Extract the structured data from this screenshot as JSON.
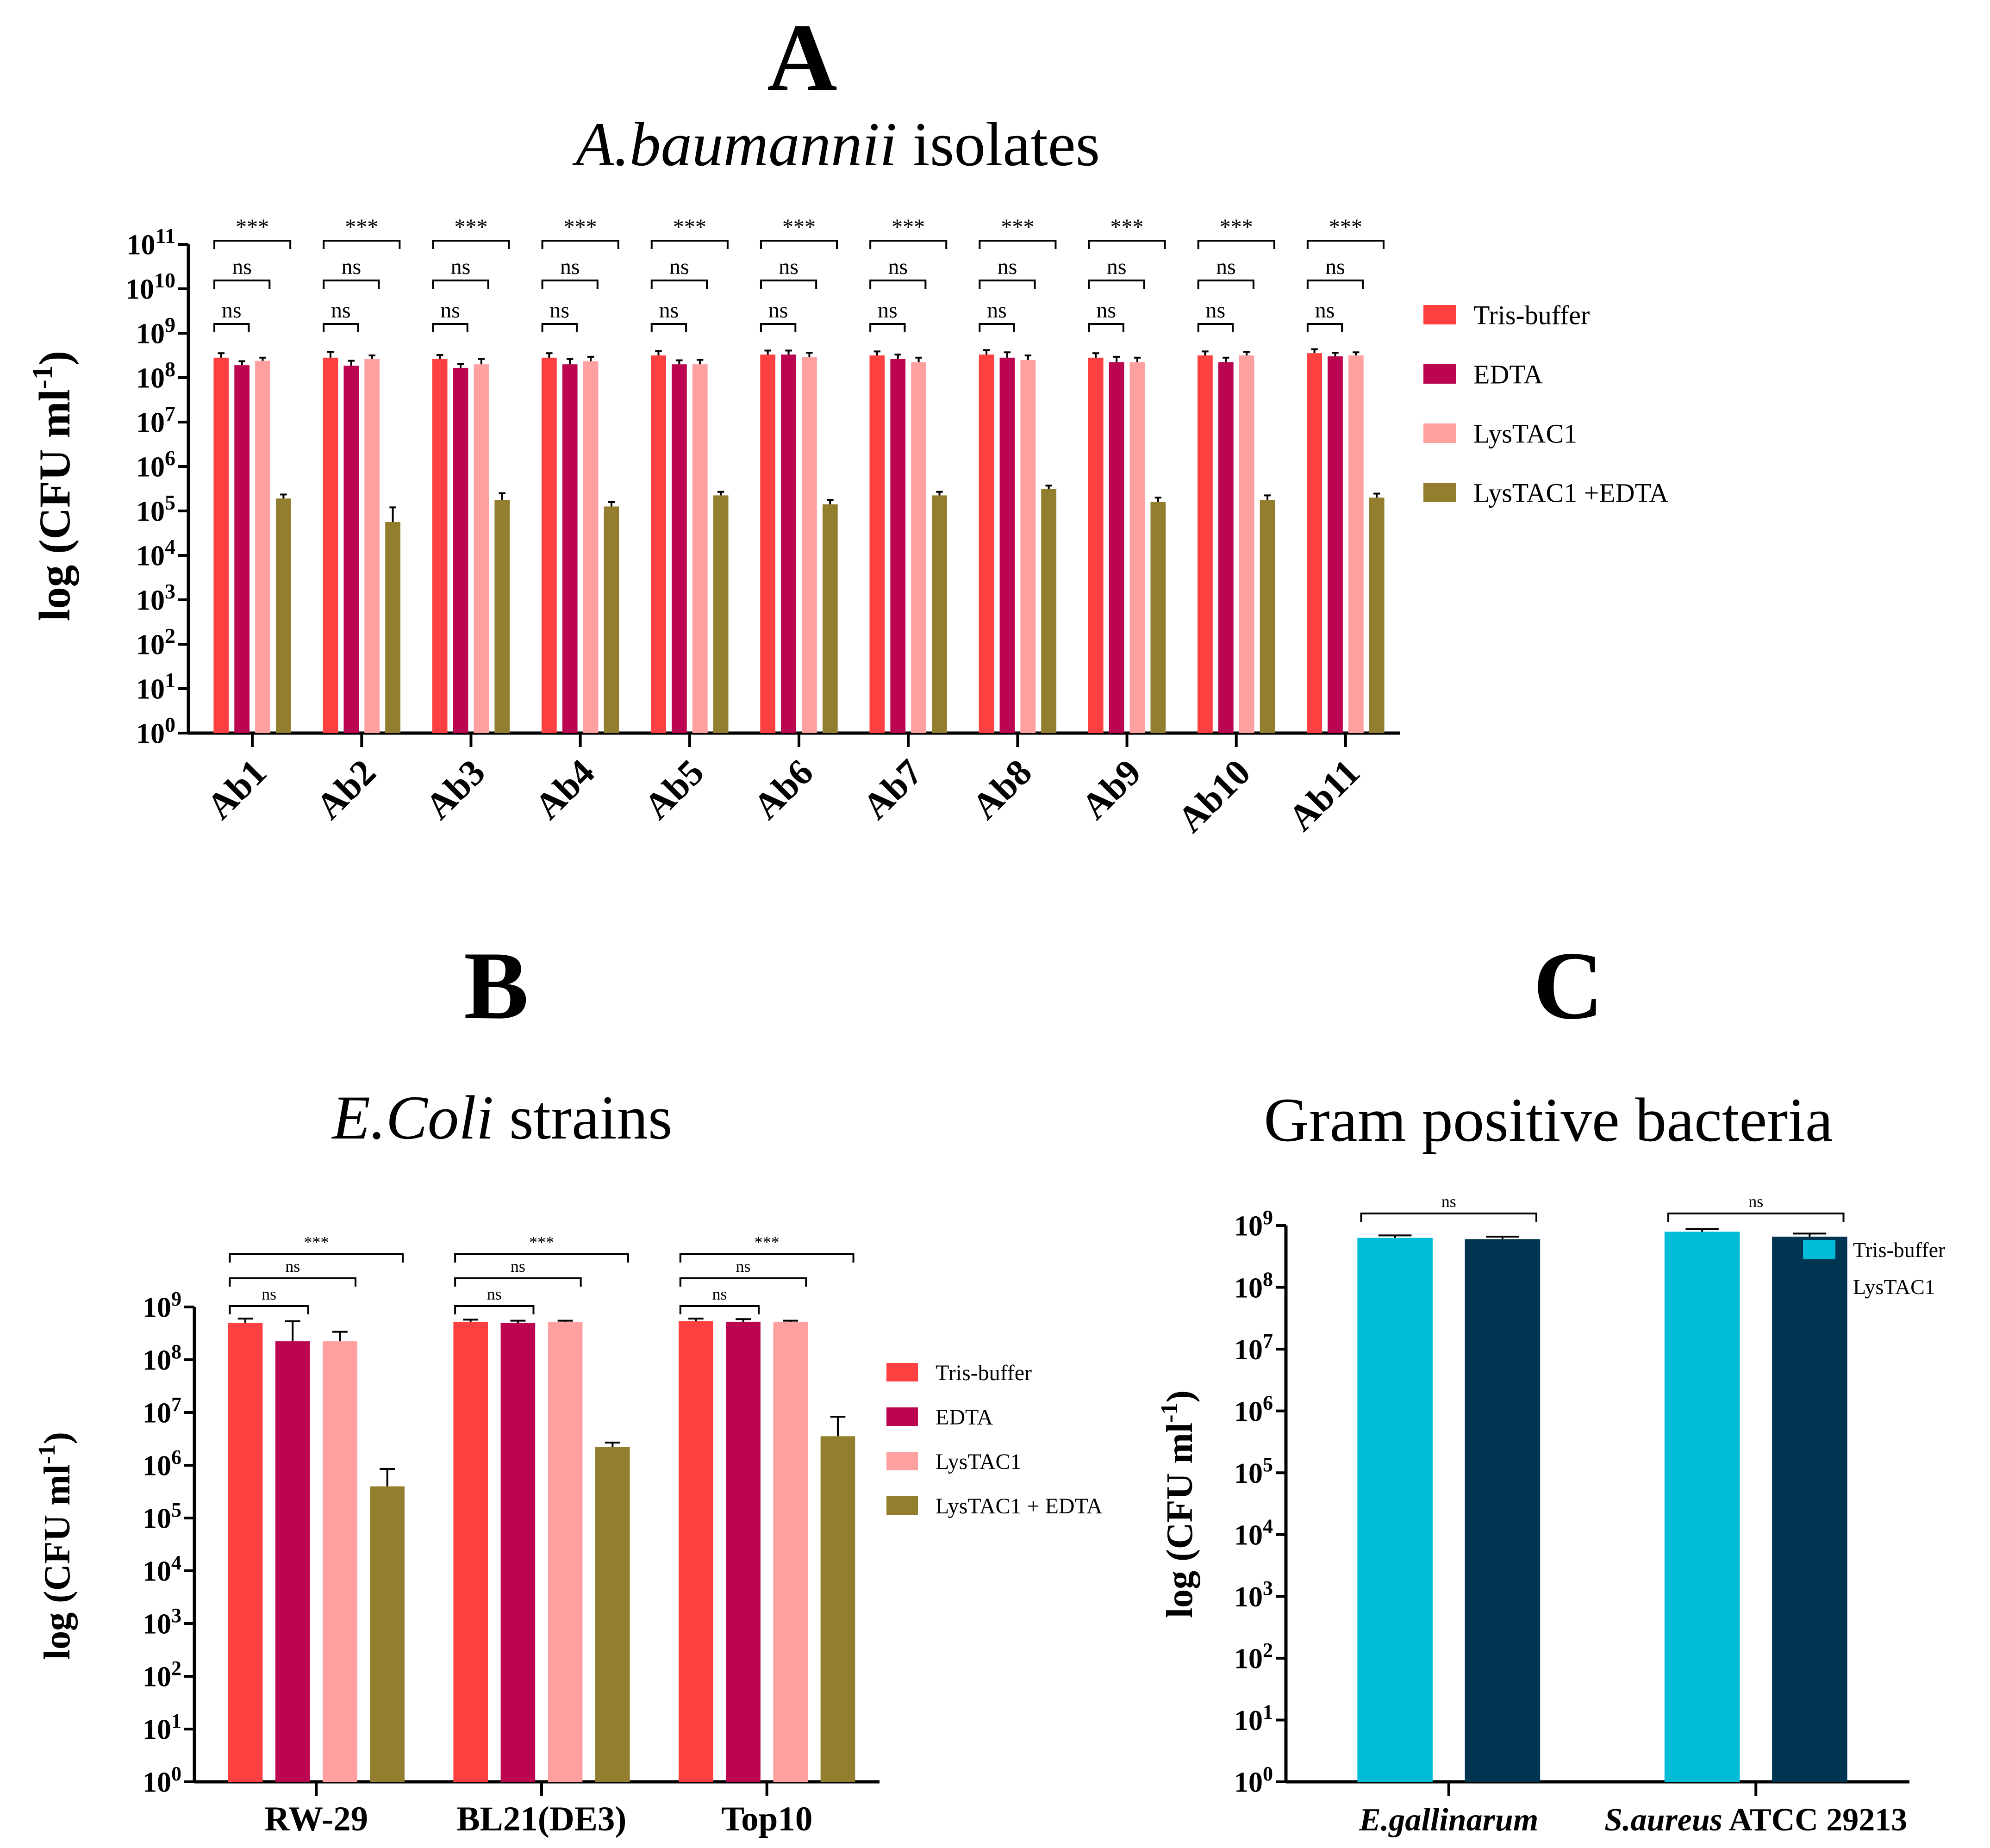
{
  "chart_data": [
    {
      "panel_label": "A",
      "type": "bar",
      "title": "A.baumannii isolates",
      "title_italic": "A.baumannii",
      "title_rest": " isolates",
      "ylabel": "log (CFU ml",
      "ylabel_sup": "-1",
      "ylabel_close": ")",
      "yscale": "log10",
      "ylim_exp": [
        0,
        11
      ],
      "legend_position": "right",
      "categories": [
        "Ab1",
        "Ab2",
        "Ab3",
        "Ab4",
        "Ab5",
        "Ab6",
        "Ab7",
        "Ab8",
        "Ab9",
        "Ab10",
        "Ab11"
      ],
      "series": [
        {
          "name": "Tris-buffer",
          "color": "#ff4040",
          "log_values": [
            8.45,
            8.45,
            8.42,
            8.45,
            8.5,
            8.52,
            8.5,
            8.52,
            8.45,
            8.5,
            8.55
          ],
          "log_err": [
            0.1,
            0.13,
            0.09,
            0.1,
            0.1,
            0.09,
            0.09,
            0.1,
            0.1,
            0.09,
            0.09
          ]
        },
        {
          "name": " EDTA",
          "color": "#bb0550",
          "log_values": [
            8.28,
            8.27,
            8.22,
            8.3,
            8.3,
            8.52,
            8.42,
            8.45,
            8.35,
            8.35,
            8.48
          ],
          "log_err": [
            0.09,
            0.11,
            0.09,
            0.12,
            0.09,
            0.09,
            0.1,
            0.12,
            0.12,
            0.1,
            0.08
          ]
        },
        {
          "name": "LysTAC1",
          "color": "#ffa0a0",
          "log_values": [
            8.38,
            8.42,
            8.3,
            8.37,
            8.3,
            8.46,
            8.35,
            8.4,
            8.35,
            8.5,
            8.5
          ],
          "log_err": [
            0.07,
            0.08,
            0.12,
            0.1,
            0.1,
            0.1,
            0.1,
            0.1,
            0.1,
            0.08,
            0.07
          ]
        },
        {
          "name": "LysTAC1 +EDTA",
          "color": "#937d2e",
          "log_values": [
            5.28,
            4.75,
            5.25,
            5.1,
            5.35,
            5.15,
            5.35,
            5.5,
            5.2,
            5.25,
            5.3
          ],
          "log_err": [
            0.09,
            0.33,
            0.15,
            0.1,
            0.08,
            0.1,
            0.08,
            0.07,
            0.1,
            0.1,
            0.09
          ]
        }
      ],
      "significance": [
        {
          "label": "ns",
          "from": 0,
          "to": 1
        },
        {
          "label": "ns",
          "from": 0,
          "to": 2
        },
        {
          "label": "***",
          "from": 0,
          "to": 3
        }
      ]
    },
    {
      "panel_label": "B",
      "type": "bar",
      "title": "E.Coli strains",
      "title_italic": "E.Coli",
      "title_rest": " strains",
      "ylabel": "log (CFU ml",
      "ylabel_sup": "-1",
      "ylabel_close": ")",
      "yscale": "log10",
      "ylim_exp": [
        0,
        9
      ],
      "legend_position": "right",
      "categories": [
        "RW-29",
        "BL21(DE3)",
        "Top10"
      ],
      "series": [
        {
          "name": "Tris-buffer",
          "color": "#ff4040",
          "log_values": [
            8.7,
            8.72,
            8.73
          ],
          "log_err": [
            0.08,
            0.04,
            0.05
          ]
        },
        {
          "name": "EDTA",
          "color": "#bb0550",
          "log_values": [
            8.35,
            8.7,
            8.72
          ],
          "log_err": [
            0.38,
            0.04,
            0.05
          ]
        },
        {
          "name": "LysTAC1",
          "color": "#ffa0a0",
          "log_values": [
            8.35,
            8.72,
            8.72
          ],
          "log_err": [
            0.18,
            0.02,
            0.02
          ]
        },
        {
          "name": "LysTAC1 + EDTA",
          "color": "#937d2e",
          "log_values": [
            5.6,
            6.35,
            6.55
          ],
          "log_err": [
            0.33,
            0.08,
            0.37
          ]
        }
      ],
      "significance": [
        {
          "label": "ns",
          "from": 0,
          "to": 1
        },
        {
          "label": "ns",
          "from": 0,
          "to": 2
        },
        {
          "label": "***",
          "from": 0,
          "to": 3
        }
      ]
    },
    {
      "panel_label": "C",
      "type": "bar",
      "title": "Gram positive bacteria",
      "ylabel": "log (CFU ml",
      "ylabel_sup": "-1",
      "ylabel_close": ")",
      "yscale": "log10",
      "ylim_exp": [
        0,
        9
      ],
      "legend_position": "right",
      "categories": [
        {
          "italic": "E.gallinarum",
          "rest": ""
        },
        {
          "italic": "S.aureus",
          "rest": " ATCC 29213"
        }
      ],
      "series": [
        {
          "name": "Tris-buffer",
          "color": "#00bcd6",
          "log_values": [
            8.8,
            8.9
          ],
          "log_err": [
            0.04,
            0.04
          ]
        },
        {
          "name": "LysTAC1",
          "color": "#003552",
          "log_values": [
            8.78,
            8.82
          ],
          "log_err": [
            0.04,
            0.05
          ]
        }
      ],
      "significance": [
        {
          "label": "ns",
          "from": 0,
          "to": 1
        }
      ]
    }
  ]
}
